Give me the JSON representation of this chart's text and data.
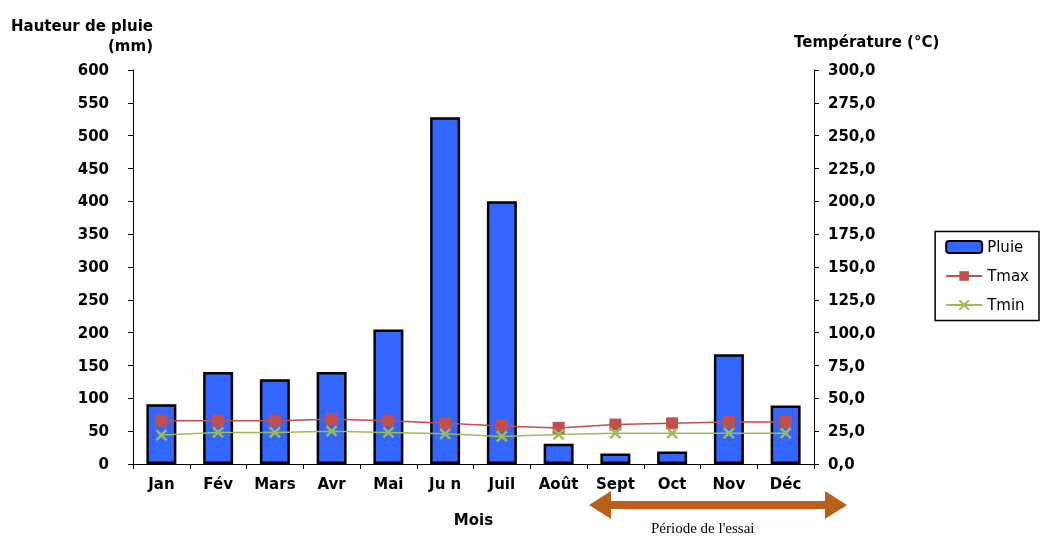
{
  "chart_data": {
    "type": "bar",
    "ylabel": "Hauteur de pluie\n(mm)",
    "y2label": "Température (°C)",
    "xlabel": "Mois",
    "categories": [
      "Jan",
      "Fév",
      "Mars",
      "Avr",
      "Mai",
      "Ju n",
      "Juil",
      "Août",
      "Sept",
      "Oct",
      "Nov",
      "Déc"
    ],
    "series": [
      {
        "name": "Pluie",
        "color": "#3366ff",
        "values": [
          91,
          140,
          129,
          140,
          205,
          528,
          400,
          31,
          16,
          19,
          167,
          89
        ]
      },
      {
        "name": "Tmax",
        "type": "line",
        "axis": "y2",
        "marker": "square",
        "color": "#c0504d",
        "values": [
          33,
          33,
          33,
          34,
          33,
          31,
          29,
          27.5,
          30,
          31,
          32,
          32
        ]
      },
      {
        "name": "Tmin",
        "type": "line",
        "axis": "y2",
        "marker": "cross",
        "color": "#9bbb59",
        "values": [
          22,
          24,
          24,
          25,
          24,
          23,
          21,
          22.5,
          23.5,
          23.5,
          23.5,
          23.5
        ]
      }
    ],
    "ylim": [
      0,
      600
    ],
    "yticks": [
      0,
      50,
      100,
      150,
      200,
      250,
      300,
      350,
      400,
      450,
      500,
      550,
      600
    ],
    "y2lim": [
      0,
      300
    ],
    "y2ticks": [
      {
        "value": 0,
        "label": "0,0"
      },
      {
        "value": 25,
        "label": "25,0"
      },
      {
        "value": 50,
        "label": "50,0"
      },
      {
        "value": 75,
        "label": "75,0"
      },
      {
        "value": 100,
        "label": "100,0"
      },
      {
        "value": 125,
        "label": "125,0"
      },
      {
        "value": 150,
        "label": "150,0"
      },
      {
        "value": 175,
        "label": "175,0"
      },
      {
        "value": 200,
        "label": "200,0"
      },
      {
        "value": 225,
        "label": "225,0"
      },
      {
        "value": 250,
        "label": "250,0"
      },
      {
        "value": 275,
        "label": "275,0"
      },
      {
        "value": 300,
        "label": "300,0"
      }
    ],
    "grid": false,
    "legend": "right",
    "annotations": [
      "Période de l'essai"
    ]
  }
}
